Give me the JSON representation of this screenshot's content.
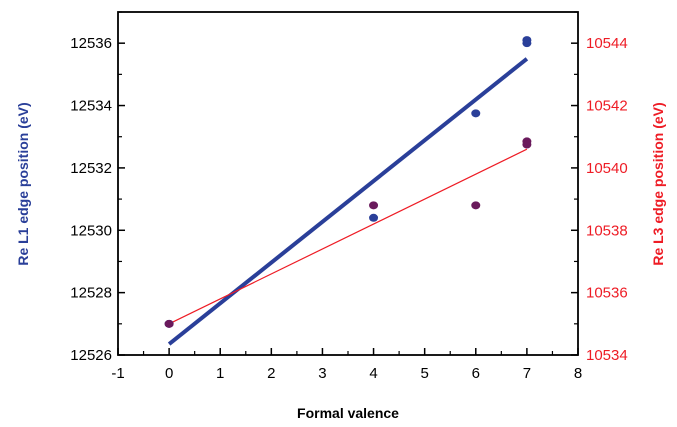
{
  "chart_data": {
    "type": "scatter",
    "xlabel": "Formal valence",
    "ylabel_left": "Re L1 edge position  (eV)",
    "ylabel_right": "Re L3 edge position  (eV)",
    "xlim": [
      -1,
      8
    ],
    "ylim_left": [
      12526,
      12537
    ],
    "ylim_right": [
      10534,
      10545
    ],
    "x_ticks": [
      -1,
      0,
      1,
      2,
      3,
      4,
      5,
      6,
      7,
      8
    ],
    "y_ticks_left": [
      12526,
      12528,
      12530,
      12532,
      12534,
      12536
    ],
    "y_ticks_right": [
      10534,
      10536,
      10538,
      10540,
      10542,
      10544
    ],
    "grid": false,
    "series": [
      {
        "axis": "left",
        "color": "#2a3f99",
        "points": [
          [
            0,
            12527.0
          ],
          [
            4,
            12530.4
          ],
          [
            6,
            12533.75
          ],
          [
            7,
            12536.0
          ],
          [
            7,
            12536.1
          ]
        ],
        "fit_line": [
          [
            0,
            12526.35
          ],
          [
            7,
            12535.5
          ]
        ]
      },
      {
        "axis": "right",
        "color": "#ee1c25",
        "marker_color": "#6a1a5c",
        "points": [
          [
            0,
            10535.0
          ],
          [
            4,
            10538.8
          ],
          [
            6,
            10538.8
          ],
          [
            7,
            10540.75
          ],
          [
            7,
            10540.85
          ]
        ],
        "fit_line": [
          [
            0,
            10535.0
          ],
          [
            7,
            10540.6
          ]
        ]
      }
    ]
  }
}
